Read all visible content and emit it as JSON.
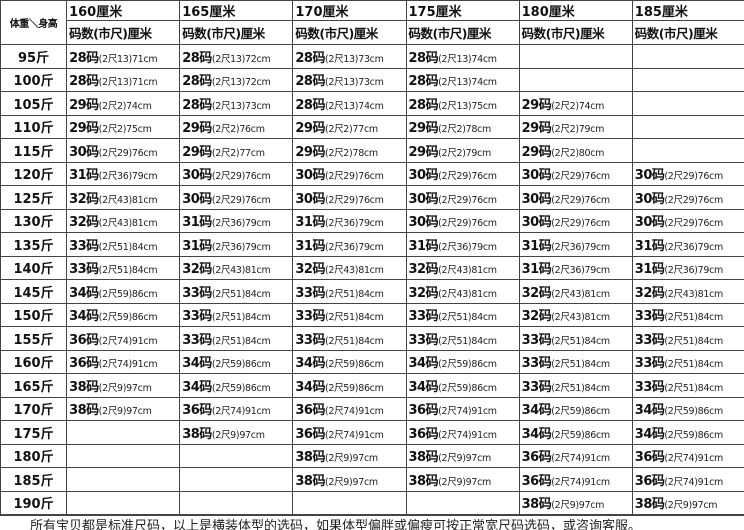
{
  "table": {
    "corner_label": "体重＼身高",
    "heights": [
      "160厘米",
      "165厘米",
      "170厘米",
      "175厘米",
      "180厘米",
      "185厘米"
    ],
    "sub_header": "码数(市尺)厘米",
    "rows": [
      {
        "weight": "95斤",
        "cells": [
          [
            "28码",
            "(2尺13)71cm"
          ],
          [
            "28码",
            "(2尺13)72cm"
          ],
          [
            "28码",
            "(2尺13)73cm"
          ],
          [
            "28码",
            "(2尺13)74cm"
          ],
          null,
          null
        ]
      },
      {
        "weight": "100斤",
        "cells": [
          [
            "28码",
            "(2尺13)71cm"
          ],
          [
            "28码",
            "(2尺13)72cm"
          ],
          [
            "28码",
            "(2尺13)73cm"
          ],
          [
            "28码",
            "(2尺13)74cm"
          ],
          null,
          null
        ]
      },
      {
        "weight": "105斤",
        "cells": [
          [
            "29码",
            "(2尺2)74cm"
          ],
          [
            "28码",
            "(2尺13)73cm"
          ],
          [
            "28码",
            "(2尺13)74cm"
          ],
          [
            "28码",
            "(2尺13)75cm"
          ],
          [
            "29码",
            "(2尺2)74cm"
          ],
          null
        ]
      },
      {
        "weight": "110斤",
        "cells": [
          [
            "29码",
            "(2尺2)75cm"
          ],
          [
            "29码",
            "(2尺2)76cm"
          ],
          [
            "29码",
            "(2尺2)77cm"
          ],
          [
            "29码",
            "(2尺2)78cm"
          ],
          [
            "29码",
            "(2尺2)79cm"
          ],
          null
        ]
      },
      {
        "weight": "115斤",
        "cells": [
          [
            "30码",
            "(2尺29)76cm"
          ],
          [
            "29码",
            "(2尺2)77cm"
          ],
          [
            "29码",
            "(2尺2)78cm"
          ],
          [
            "29码",
            "(2尺2)79cm"
          ],
          [
            "29码",
            "(2尺2)80cm"
          ],
          null
        ]
      },
      {
        "weight": "120斤",
        "cells": [
          [
            "31码",
            "(2尺36)79cm"
          ],
          [
            "30码",
            "(2尺29)76cm"
          ],
          [
            "30码",
            "(2尺29)76cm"
          ],
          [
            "30码",
            "(2尺29)76cm"
          ],
          [
            "30码",
            "(2尺29)76cm"
          ],
          [
            "30码",
            "(2尺29)76cm"
          ]
        ]
      },
      {
        "weight": "125斤",
        "cells": [
          [
            "32码",
            "(2尺43)81cm"
          ],
          [
            "30码",
            "(2尺29)76cm"
          ],
          [
            "30码",
            "(2尺29)76cm"
          ],
          [
            "30码",
            "(2尺29)76cm"
          ],
          [
            "30码",
            "(2尺29)76cm"
          ],
          [
            "30码",
            "(2尺29)76cm"
          ]
        ]
      },
      {
        "weight": "130斤",
        "cells": [
          [
            "32码",
            "(2尺43)81cm"
          ],
          [
            "31码",
            "(2尺36)79cm"
          ],
          [
            "31码",
            "(2尺36)79cm"
          ],
          [
            "30码",
            "(2尺29)76cm"
          ],
          [
            "30码",
            "(2尺29)76cm"
          ],
          [
            "30码",
            "(2尺29)76cm"
          ]
        ]
      },
      {
        "weight": "135斤",
        "cells": [
          [
            "33码",
            "(2尺51)84cm"
          ],
          [
            "31码",
            "(2尺36)79cm"
          ],
          [
            "31码",
            "(2尺36)79cm"
          ],
          [
            "31码",
            "(2尺36)79cm"
          ],
          [
            "31码",
            "(2尺36)79cm"
          ],
          [
            "31码",
            "(2尺36)79cm"
          ]
        ]
      },
      {
        "weight": "140斤",
        "cells": [
          [
            "33码",
            "(2尺51)84cm"
          ],
          [
            "32码",
            "(2尺43)81cm"
          ],
          [
            "32码",
            "(2尺43)81cm"
          ],
          [
            "32码",
            "(2尺43)81cm"
          ],
          [
            "31码",
            "(2尺36)79cm"
          ],
          [
            "31码",
            "(2尺36)79cm"
          ]
        ]
      },
      {
        "weight": "145斤",
        "cells": [
          [
            "34码",
            "(2尺59)86cm"
          ],
          [
            "33码",
            "(2尺51)84cm"
          ],
          [
            "33码",
            "(2尺51)84cm"
          ],
          [
            "32码",
            "(2尺43)81cm"
          ],
          [
            "32码",
            "(2尺43)81cm"
          ],
          [
            "32码",
            "(2尺43)81cm"
          ]
        ]
      },
      {
        "weight": "150斤",
        "cells": [
          [
            "34码",
            "(2尺59)86cm"
          ],
          [
            "33码",
            "(2尺51)84cm"
          ],
          [
            "33码",
            "(2尺51)84cm"
          ],
          [
            "33码",
            "(2尺51)84cm"
          ],
          [
            "32码",
            "(2尺43)81cm"
          ],
          [
            "33码",
            "(2尺51)84cm"
          ]
        ]
      },
      {
        "weight": "155斤",
        "cells": [
          [
            "36码",
            "(2尺74)91cm"
          ],
          [
            "33码",
            "(2尺51)84cm"
          ],
          [
            "33码",
            "(2尺51)84cm"
          ],
          [
            "33码",
            "(2尺51)84cm"
          ],
          [
            "33码",
            "(2尺51)84cm"
          ],
          [
            "33码",
            "(2尺51)84cm"
          ]
        ]
      },
      {
        "weight": "160斤",
        "cells": [
          [
            "36码",
            "(2尺74)91cm"
          ],
          [
            "34码",
            "(2尺59)86cm"
          ],
          [
            "34码",
            "(2尺59)86cm"
          ],
          [
            "34码",
            "(2尺59)86cm"
          ],
          [
            "33码",
            "(2尺51)84cm"
          ],
          [
            "33码",
            "(2尺51)84cm"
          ]
        ]
      },
      {
        "weight": "165斤",
        "cells": [
          [
            "38码",
            "(2尺9)97cm"
          ],
          [
            "34码",
            "(2尺59)86cm"
          ],
          [
            "34码",
            "(2尺59)86cm"
          ],
          [
            "34码",
            "(2尺59)86cm"
          ],
          [
            "33码",
            "(2尺51)84cm"
          ],
          [
            "33码",
            "(2尺51)84cm"
          ]
        ]
      },
      {
        "weight": "170斤",
        "cells": [
          [
            "38码",
            "(2尺9)97cm"
          ],
          [
            "36码",
            "(2尺74)91cm"
          ],
          [
            "36码",
            "(2尺74)91cm"
          ],
          [
            "36码",
            "(2尺74)91cm"
          ],
          [
            "34码",
            "(2尺59)86cm"
          ],
          [
            "34码",
            "(2尺59)86cm"
          ]
        ]
      },
      {
        "weight": "175斤",
        "cells": [
          null,
          [
            "38码",
            "(2尺9)97cm"
          ],
          [
            "36码",
            "(2尺74)91cm"
          ],
          [
            "36码",
            "(2尺74)91cm"
          ],
          [
            "34码",
            "(2尺59)86cm"
          ],
          [
            "34码",
            "(2尺59)86cm"
          ]
        ]
      },
      {
        "weight": "180斤",
        "cells": [
          null,
          null,
          [
            "38码",
            "(2尺9)97cm"
          ],
          [
            "38码",
            "(2尺9)97cm"
          ],
          [
            "36码",
            "(2尺74)91cm"
          ],
          [
            "36码",
            "(2尺74)91cm"
          ]
        ]
      },
      {
        "weight": "185斤",
        "cells": [
          null,
          null,
          [
            "38码",
            "(2尺9)97cm"
          ],
          [
            "38码",
            "(2尺9)97cm"
          ],
          [
            "36码",
            "(2尺74)91cm"
          ],
          [
            "36码",
            "(2尺74)91cm"
          ]
        ]
      },
      {
        "weight": "190斤",
        "cells": [
          null,
          null,
          null,
          null,
          [
            "38码",
            "(2尺9)97cm"
          ],
          [
            "38码",
            "(2尺9)97cm"
          ]
        ]
      }
    ]
  },
  "note": "所有宝贝都是标准尺码，以上是横装体型的选码，如果体型偏胖或偏瘦可按正常宽尺码选码，或咨询客服。"
}
